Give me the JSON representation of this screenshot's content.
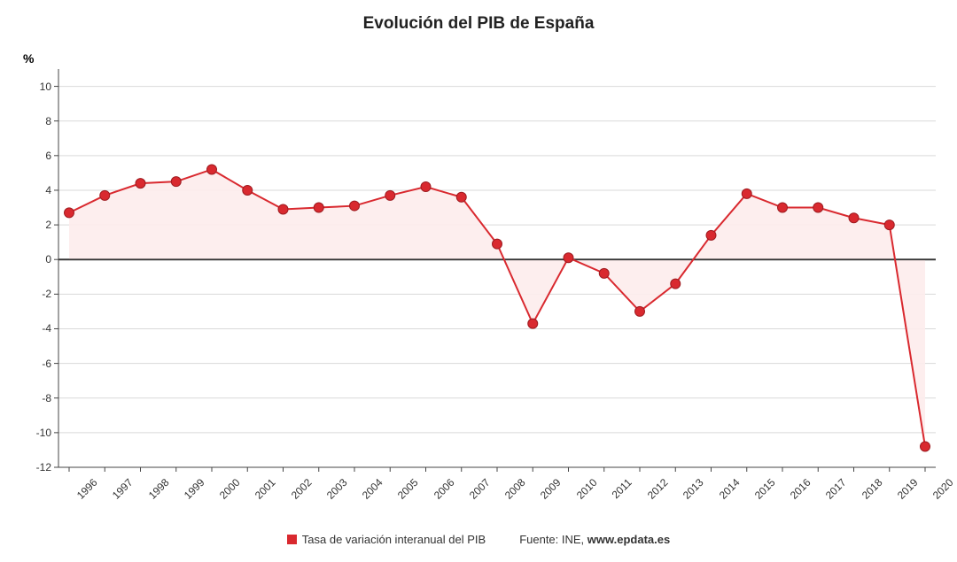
{
  "chart": {
    "type": "line-area",
    "title": "Evolución del PIB de España",
    "title_fontsize": 19,
    "title_color": "#222222",
    "y_axis_symbol": "%",
    "y_axis_symbol_fontsize": 14,
    "background_color": "#ffffff",
    "plot_border_color": "#444444",
    "plot_border_width": 1,
    "zero_line_color": "#333333",
    "zero_line_width": 1.8,
    "grid_color": "#d9d9d9",
    "grid_width": 1,
    "x": {
      "labels": [
        "1996",
        "1997",
        "1998",
        "1999",
        "2000",
        "2001",
        "2002",
        "2003",
        "2004",
        "2005",
        "2006",
        "2007",
        "2008",
        "2009",
        "2010",
        "2011",
        "2012",
        "2013",
        "2014",
        "2015",
        "2016",
        "2017",
        "2018",
        "2019",
        "2020"
      ],
      "label_fontsize": 12,
      "label_rotation_deg": -45,
      "label_color": "#333333"
    },
    "y": {
      "min": -12,
      "max": 11,
      "ticks": [
        -12,
        -10,
        -8,
        -6,
        -4,
        -2,
        0,
        2,
        4,
        6,
        8,
        10
      ],
      "label_fontsize": 12,
      "label_color": "#333333"
    },
    "series": {
      "name": "Tasa de variación interanual del PIB",
      "values": [
        2.7,
        3.7,
        4.4,
        4.5,
        5.2,
        4.0,
        2.9,
        3.0,
        3.1,
        3.7,
        4.2,
        3.6,
        0.9,
        -3.7,
        0.1,
        -0.8,
        -3.0,
        -1.4,
        1.4,
        3.8,
        3.0,
        3.0,
        2.4,
        2.0,
        -10.8
      ],
      "line_color": "#d9292f",
      "line_width": 2,
      "marker_fill": "#d9292f",
      "marker_stroke": "#9e1b20",
      "marker_radius": 5.5,
      "area_fill_above": "#fdecec",
      "area_fill_below": "#fdecec",
      "area_opacity": 0.9
    },
    "legend": {
      "series_label": "Tasa de variación interanual del PIB",
      "source_prefix": "Fuente: INE, ",
      "source_site": "www.epdata.es",
      "fontsize": 13,
      "marker_color": "#d9292f"
    }
  }
}
